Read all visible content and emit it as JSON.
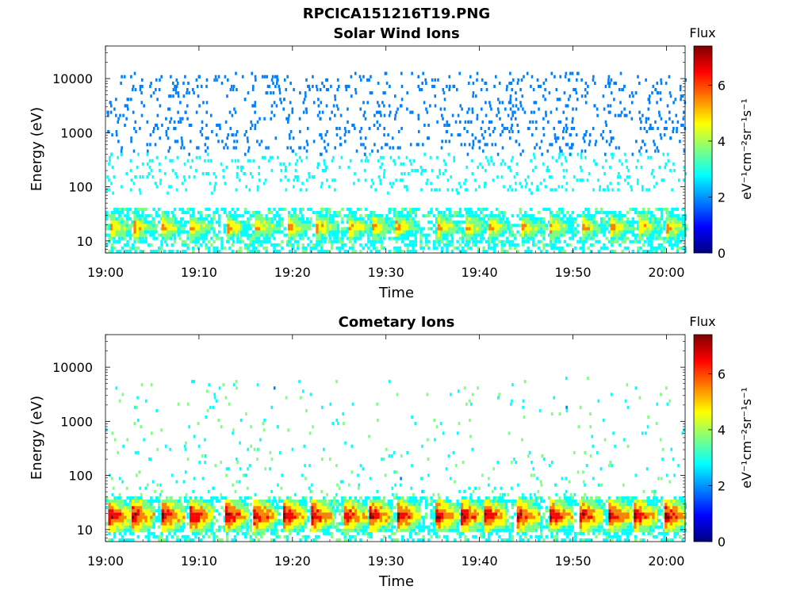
{
  "title": "RPCICA151216T19.PNG",
  "colormap": [
    "#00007f",
    "#0000ff",
    "#007fff",
    "#00ffff",
    "#7fff7f",
    "#ffff00",
    "#ff7f00",
    "#ff0000",
    "#7f0000"
  ],
  "chart_data": [
    {
      "type": "heatmap",
      "title": "Solar Wind Ions",
      "xlabel": "Time",
      "ylabel": "Energy (eV)",
      "x_ticks": [
        "19:00",
        "19:10",
        "19:20",
        "19:30",
        "19:40",
        "19:50",
        "20:00"
      ],
      "x_range_minutes": [
        0,
        62
      ],
      "y_scale": "log",
      "y_ticks": [
        "10",
        "100",
        "1000",
        "10000"
      ],
      "y_range": [
        6,
        40000
      ],
      "colorbar": {
        "title": "Flux",
        "label": "eV⁻¹cm⁻²sr⁻¹s⁻¹",
        "ticks": [
          "0",
          "2",
          "4",
          "6"
        ],
        "range": [
          0,
          7.4
        ]
      },
      "bursts_minutes": [
        0.5,
        3,
        6,
        9,
        13,
        16,
        19.5,
        22.5,
        26,
        28.5,
        31,
        35.5,
        38.5,
        41,
        44.5,
        47.5,
        51,
        54,
        57,
        60
      ],
      "grid": false
    },
    {
      "type": "heatmap",
      "title": "Cometary Ions",
      "xlabel": "Time",
      "ylabel": "Energy (eV)",
      "x_ticks": [
        "19:00",
        "19:10",
        "19:20",
        "19:30",
        "19:40",
        "19:50",
        "20:00"
      ],
      "x_range_minutes": [
        0,
        62
      ],
      "y_scale": "log",
      "y_ticks": [
        "10",
        "100",
        "1000",
        "10000"
      ],
      "y_range": [
        6,
        40000
      ],
      "colorbar": {
        "title": "Flux",
        "label": "eV⁻¹cm⁻²sr⁻¹s⁻¹",
        "ticks": [
          "0",
          "2",
          "4",
          "6"
        ],
        "range": [
          0,
          7.4
        ]
      },
      "bursts_minutes": [
        0.3,
        2.8,
        6,
        9,
        12.8,
        15.8,
        19,
        22,
        25.5,
        28.2,
        31.2,
        35.3,
        38,
        40.5,
        44,
        47.5,
        50.7,
        53.8,
        56.5,
        59.8
      ],
      "grid": false
    }
  ]
}
